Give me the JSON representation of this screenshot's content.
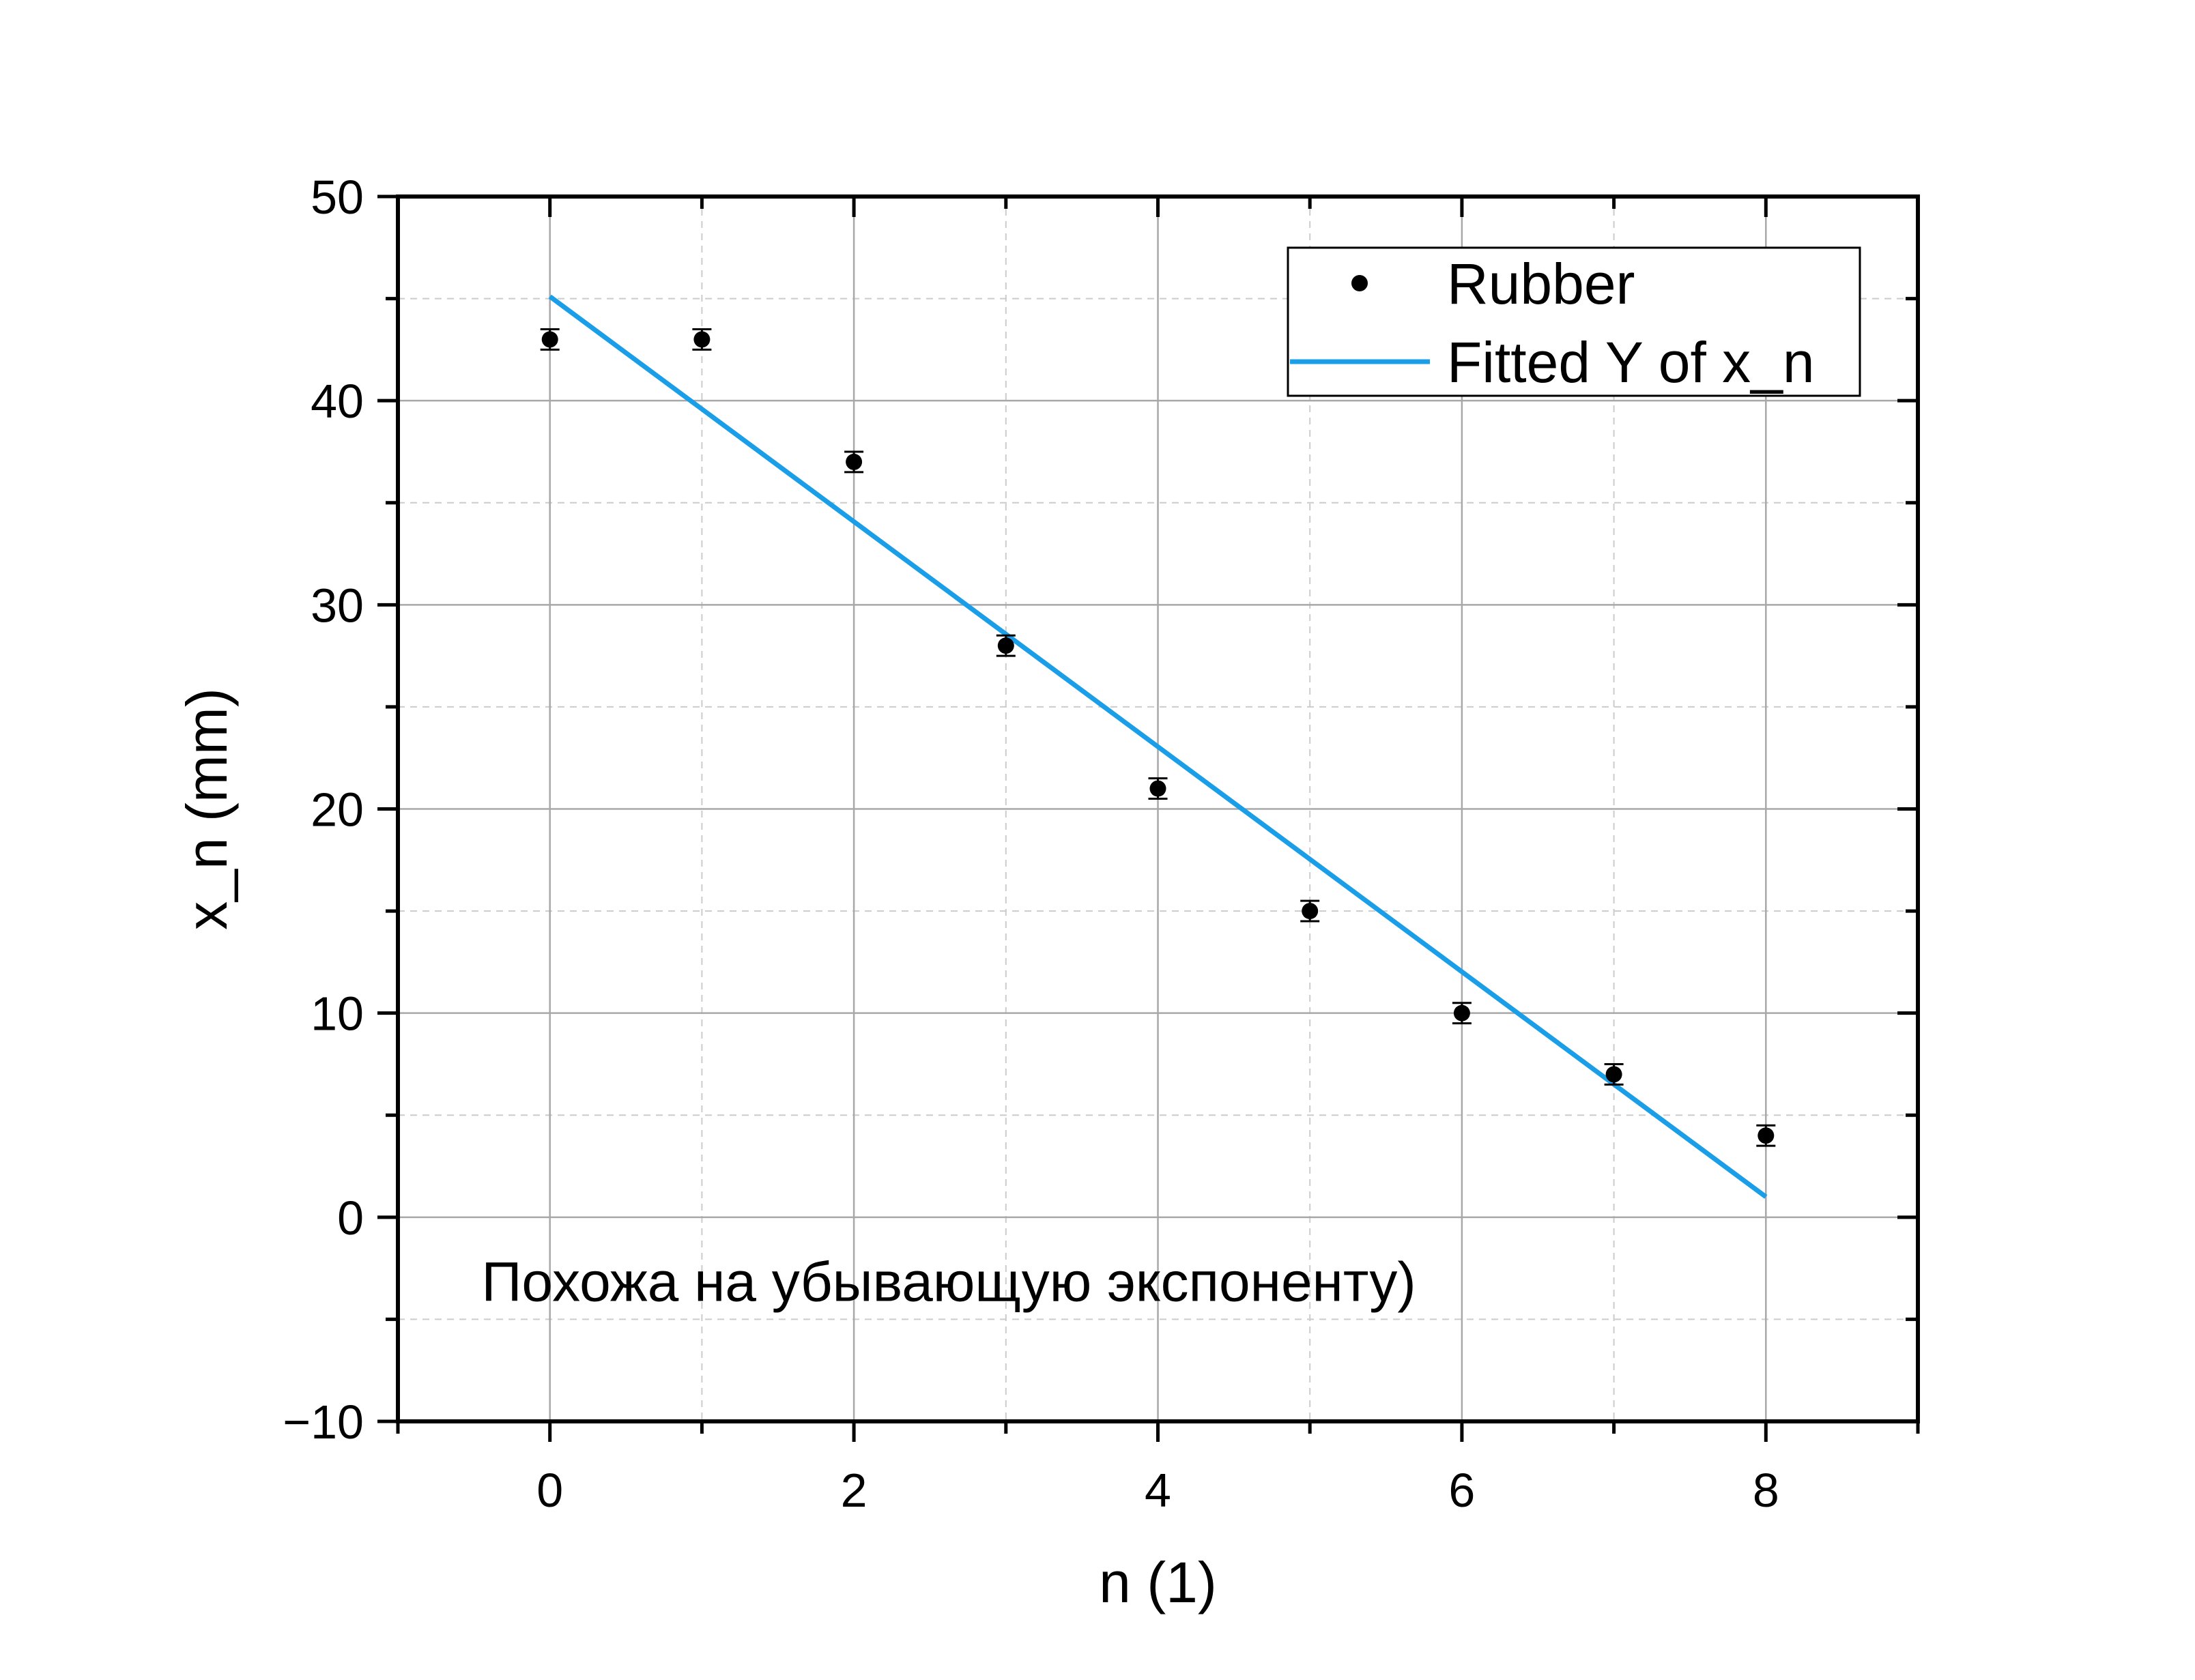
{
  "chart_data": {
    "type": "scatter",
    "title": "",
    "xlabel": "n (1)",
    "ylabel": "x_n (mm)",
    "xlim": [
      -1,
      9
    ],
    "ylim": [
      -10,
      50
    ],
    "x_ticks": [
      0,
      2,
      4,
      6,
      8
    ],
    "x_tick_labels": [
      "0",
      "2",
      "4",
      "6",
      "8"
    ],
    "x_minor_ticks": [
      -1,
      1,
      3,
      5,
      7,
      9
    ],
    "y_ticks": [
      -10,
      0,
      10,
      20,
      30,
      40,
      50
    ],
    "y_tick_labels": [
      "−10",
      "0",
      "10",
      "20",
      "30",
      "40",
      "50"
    ],
    "y_minor_ticks": [
      -5,
      5,
      15,
      25,
      35,
      45
    ],
    "grid": true,
    "legend_position": "top-right",
    "series": [
      {
        "name": "Rubber",
        "kind": "scatter",
        "color": "#000000",
        "x": [
          0,
          1,
          2,
          3,
          4,
          5,
          6,
          7,
          8
        ],
        "y": [
          43,
          43,
          37,
          28,
          21,
          15,
          10,
          7,
          4
        ],
        "error": [
          0.5,
          0.5,
          0.5,
          0.5,
          0.5,
          0.5,
          0.5,
          0.5,
          0.5
        ]
      },
      {
        "name": "Fitted Y of x_n",
        "kind": "line",
        "color": "#1a9ee8",
        "x": [
          0,
          8
        ],
        "y": [
          45.1,
          1.0
        ]
      }
    ],
    "annotations": [
      {
        "text": "Похожа на убывающую экспоненту)",
        "x": -0.45,
        "y": -4.1
      }
    ]
  }
}
